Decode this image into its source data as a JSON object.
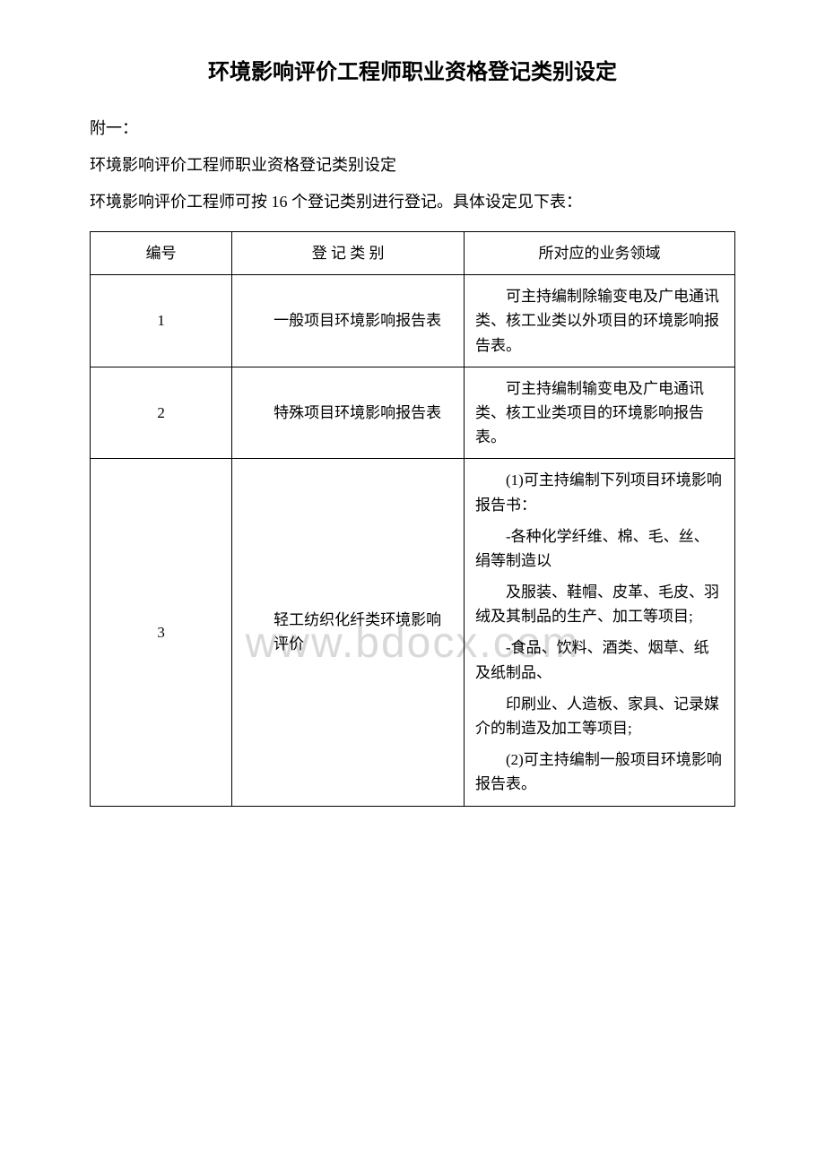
{
  "page_title": "环境影响评价工程师职业资格登记类别设定",
  "intro": {
    "line1": "附一：",
    "line2": "环境影响评价工程师职业资格登记类别设定",
    "line3": "环境影响评价工程师可按 16 个登记类别进行登记。具体设定见下表："
  },
  "watermark": "www.bdocx.com",
  "table": {
    "headers": {
      "num": "编号",
      "category": "登 记 类 别",
      "business": "所对应的业务领域"
    },
    "rows": [
      {
        "num": "1",
        "category_lines": [
          "　　一般项目环境影响报告表"
        ],
        "business_paras": [
          "可主持编制除输变电及广电通讯类、核工业类以外项目的环境影响报告表。"
        ]
      },
      {
        "num": "2",
        "category_lines": [
          "　　特殊项目环境影响报告表"
        ],
        "business_paras": [
          "可主持编制输变电及广电通讯类、核工业类项目的环境影响报告表。"
        ]
      },
      {
        "num": "3",
        "category_lines": [
          "　　轻工纺织化纤类环境影响",
          "　　评价"
        ],
        "business_paras": [
          "(1)可主持编制下列项目环境影响报告书：",
          "-各种化学纤维、棉、毛、丝、绢等制造以",
          "及服装、鞋帽、皮革、毛皮、羽绒及其制品的生产、加工等项目;",
          "-食品、饮料、酒类、烟草、纸及纸制品、",
          "印刷业、人造板、家具、记录媒介的制造及加工等项目;",
          "(2)可主持编制一般项目环境影响报告表。"
        ]
      }
    ]
  }
}
